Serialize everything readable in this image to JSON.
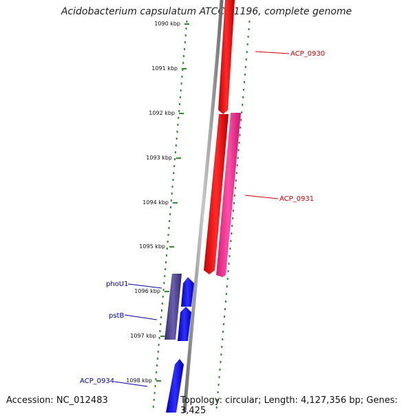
{
  "title": "Acidobacterium capsulatum ATCC 51196, complete genome",
  "footer": {
    "accession": "Accession: NC_012483",
    "stats": "Topology: circular; Length: 4,127,356 bp; Genes: 3,425"
  },
  "ruler": {
    "ticks": [
      "1090 kbp",
      "1091 kbp",
      "1092 kbp",
      "1093 kbp",
      "1094 kbp",
      "1095 kbp",
      "1096 kbp",
      "1097 kbp",
      "1098 kbp"
    ]
  },
  "genes": [
    {
      "name": "ACP_0930",
      "strand": "reverse",
      "color": "#ff0000",
      "label_color": "#cc0000"
    },
    {
      "name": "ACP_0931",
      "strand": "forward",
      "color": "#ee2288",
      "label_color": "#cc0000"
    },
    {
      "name": "ACP_0931",
      "strand": "reverse",
      "color": "#ff0000",
      "label_color": "#cc0000"
    },
    {
      "name": "phoU1",
      "strand": "forward",
      "color": "#0000ee",
      "label_color": "#0000aa"
    },
    {
      "name": "pstB",
      "strand": "forward",
      "color": "#0000ee",
      "label_color": "#0000aa"
    },
    {
      "name": "ACP_0934",
      "strand": "forward",
      "color": "#0000ee",
      "label_color": "#0000aa"
    }
  ],
  "colors": {
    "backbone": "#8a8a8a",
    "dots": "#2e8b2e",
    "paired_bar": "#4a3f8a"
  }
}
